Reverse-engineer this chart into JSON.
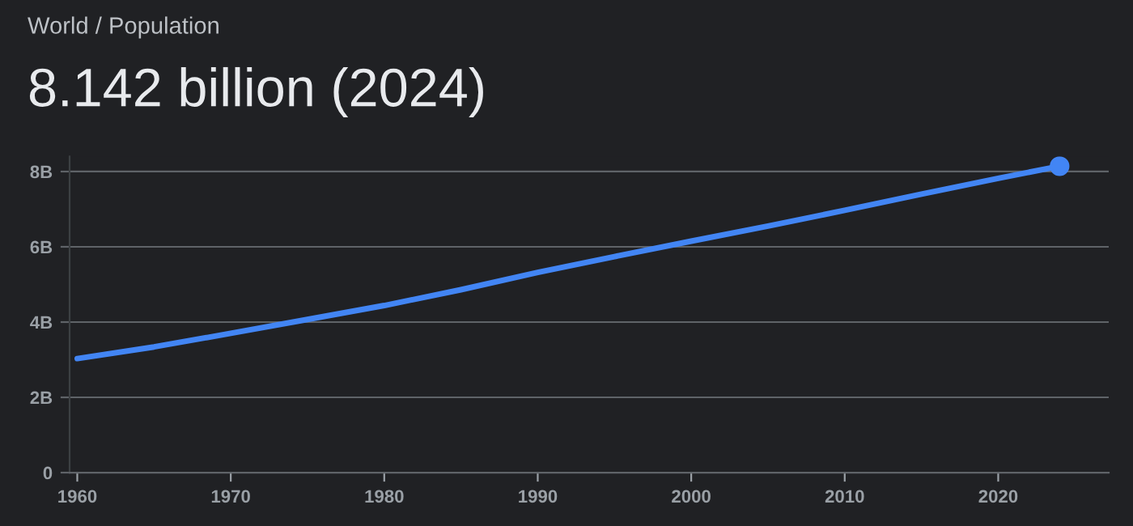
{
  "chart_data": {
    "type": "line",
    "title": "World / Population",
    "subtitle": "8.142 billion (2024)",
    "x": [
      1960,
      1965,
      1970,
      1975,
      1980,
      1985,
      1990,
      1995,
      2000,
      2005,
      2010,
      2015,
      2020,
      2024
    ],
    "series": [
      {
        "color": "#4285f4",
        "values": [
          3.03,
          3.34,
          3.7,
          4.07,
          4.44,
          4.86,
          5.32,
          5.74,
          6.15,
          6.55,
          6.97,
          7.4,
          7.82,
          8.142
        ]
      },
      {
        "type": "scatter",
        "color": "#4285f4",
        "x": [
          2024
        ],
        "values": [
          8.142
        ]
      }
    ],
    "xlim": [
      1959.5,
      2027.2
    ],
    "xticks": [
      1960,
      1970,
      1980,
      1990,
      2000,
      2010,
      2020
    ],
    "ylim": [
      0,
      8.4
    ],
    "yticks": [
      0,
      {
        "value": 2,
        "label": "2B"
      },
      {
        "value": 4,
        "label": "4B"
      },
      {
        "value": 6,
        "label": "6B"
      },
      {
        "value": 8,
        "label": "8B"
      }
    ],
    "grid": "y",
    "line_style": "solid",
    "legend": false
  }
}
